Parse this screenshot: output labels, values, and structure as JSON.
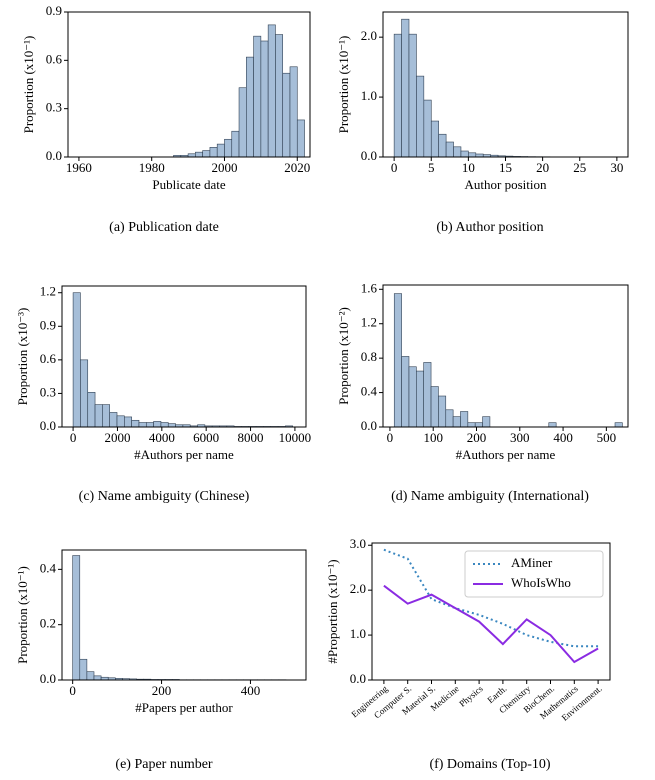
{
  "chart_data": [
    {
      "type": "histogram",
      "caption": "(a)  Publication date",
      "xlabel": "Publicate date",
      "ylabel": "Proportion (x10⁻¹)",
      "color": "#a6bed8",
      "edgecolor": "#2f3f52",
      "bins": [
        1960,
        1962,
        1964,
        1966,
        1968,
        1970,
        1972,
        1974,
        1976,
        1978,
        1980,
        1982,
        1984,
        1986,
        1988,
        1990,
        1992,
        1994,
        1996,
        1998,
        2000,
        2002,
        2004,
        2006,
        2008,
        2010,
        2012,
        2014,
        2016,
        2018,
        2020,
        2022
      ],
      "values": [
        0,
        0,
        0,
        0,
        0,
        0,
        0,
        0,
        0,
        0,
        0,
        0,
        0,
        0.01,
        0.01,
        0.02,
        0.03,
        0.04,
        0.06,
        0.08,
        0.11,
        0.16,
        0.43,
        0.62,
        0.75,
        0.72,
        0.82,
        0.76,
        0.52,
        0.56,
        0.23
      ],
      "xlim": [
        1957,
        2023.5
      ],
      "xticks": [
        1960,
        1980,
        2000,
        2020
      ],
      "ylim": [
        0,
        0.9
      ],
      "yticks": [
        {
          "value": 0,
          "label": "0.0"
        },
        0.3,
        0.6,
        0.9
      ]
    },
    {
      "type": "histogram",
      "caption": "(b)  Author position",
      "xlabel": "Author position",
      "ylabel": "Proportion (x10⁻¹)",
      "color": "#a6bed8",
      "edgecolor": "#2f3f52",
      "bins": [
        0,
        1,
        2,
        3,
        4,
        5,
        6,
        7,
        8,
        9,
        10,
        11,
        12,
        13,
        14,
        15,
        16,
        17,
        18,
        19,
        20,
        21,
        22,
        23,
        24,
        25,
        26,
        27,
        28,
        29,
        30
      ],
      "values": [
        2.05,
        2.3,
        2.05,
        1.35,
        0.95,
        0.6,
        0.38,
        0.25,
        0.17,
        0.1,
        0.07,
        0.05,
        0.04,
        0.03,
        0.02,
        0.015,
        0.01,
        0.008,
        0.006,
        0.005,
        0.004,
        0.003,
        0.003,
        0.002,
        0.002,
        0.002,
        0.001,
        0.001,
        0.001,
        0.001
      ],
      "xlim": [
        -1.5,
        31.5
      ],
      "xticks": [
        0,
        5,
        10,
        15,
        20,
        25,
        30
      ],
      "ylim": [
        0,
        2.42
      ],
      "yticks": [
        {
          "value": 0,
          "label": "0.0"
        },
        {
          "value": 1,
          "label": "1.0"
        },
        {
          "value": 2,
          "label": "2.0"
        }
      ]
    },
    {
      "type": "histogram",
      "caption": "(c)  Name ambiguity (Chinese)",
      "xlabel": "#Authors per name",
      "ylabel": "Proportion (x10⁻³)",
      "color": "#a6bed8",
      "edgecolor": "#2f3f52",
      "bins": [
        0,
        330,
        660,
        990,
        1320,
        1650,
        1980,
        2310,
        2640,
        2970,
        3300,
        3630,
        3960,
        4290,
        4620,
        4950,
        5280,
        5610,
        5940,
        6270,
        6600,
        6930,
        7260,
        7590,
        7920,
        8250,
        8580,
        8910,
        9240,
        9570,
        9900
      ],
      "values": [
        1.2,
        0.6,
        0.31,
        0.2,
        0.2,
        0.13,
        0.1,
        0.09,
        0.06,
        0.04,
        0.04,
        0.05,
        0.04,
        0.03,
        0.02,
        0.02,
        0.01,
        0.02,
        0.01,
        0.01,
        0.01,
        0.01,
        0.005,
        0.005,
        0.005,
        0.005,
        0.005,
        0.005,
        0.005,
        0.01
      ],
      "xlim": [
        -500,
        10500
      ],
      "xticks": [
        0,
        2000,
        4000,
        6000,
        8000,
        10000
      ],
      "ylim": [
        0,
        1.26
      ],
      "yticks": [
        {
          "value": 0,
          "label": "0.0"
        },
        0.3,
        0.6,
        0.9,
        1.2
      ]
    },
    {
      "type": "histogram",
      "caption": "(d)  Name ambiguity (International)",
      "xlabel": "#Authors per name",
      "ylabel": "Proportion (x10⁻²)",
      "color": "#a6bed8",
      "edgecolor": "#2f3f52",
      "bins": [
        10,
        27,
        44,
        61,
        78,
        95,
        112,
        129,
        146,
        163,
        180,
        197,
        214,
        231,
        248,
        265,
        282,
        299,
        316,
        333,
        350,
        367,
        384,
        401,
        418,
        435,
        452,
        469,
        486,
        503,
        520,
        537
      ],
      "values": [
        1.55,
        0.82,
        0.7,
        0.65,
        0.75,
        0.47,
        0.36,
        0.2,
        0.12,
        0.18,
        0.05,
        0.05,
        0.12,
        0,
        0,
        0,
        0,
        0,
        0,
        0,
        0,
        0.05,
        0,
        0,
        0,
        0,
        0,
        0,
        0,
        0,
        0.05
      ],
      "xlim": [
        -16,
        550
      ],
      "xticks": [
        0,
        100,
        200,
        300,
        400,
        500
      ],
      "ylim": [
        0,
        1.65
      ],
      "yticks": [
        {
          "value": 0,
          "label": "0.0"
        },
        0.4,
        0.8,
        1.2,
        1.6
      ]
    },
    {
      "type": "histogram",
      "caption": "(e)  Paper number",
      "xlabel": "#Papers per author",
      "ylabel": "Proportion (x10⁻¹)",
      "color": "#a6bed8",
      "edgecolor": "#2f3f52",
      "bins": [
        0,
        16,
        32,
        48,
        64,
        80,
        96,
        112,
        128,
        144,
        160,
        176,
        192,
        208,
        224,
        240,
        256,
        272,
        288,
        304,
        320,
        336,
        352,
        368,
        384,
        400,
        416,
        432,
        448,
        464,
        480
      ],
      "values": [
        0.45,
        0.075,
        0.03,
        0.015,
        0.01,
        0.008,
        0.006,
        0.005,
        0.004,
        0.003,
        0.003,
        0.002,
        0.002,
        0.002,
        0.002,
        0.001,
        0.001,
        0.001,
        0.001,
        0.001,
        0.001,
        0.001,
        0.001,
        0.001,
        0.001,
        0.001,
        0.001,
        0.001,
        0.001,
        0.001
      ],
      "xlim": [
        -24,
        525
      ],
      "xticks": [
        0,
        200,
        400
      ],
      "ylim": [
        0,
        0.47
      ],
      "yticks": [
        {
          "value": 0,
          "label": "0.0"
        },
        0.2,
        0.4
      ]
    },
    {
      "type": "line",
      "caption": "(f)  Domains (Top-10)",
      "ylabel": "#Proportion (x10⁻¹)",
      "legend": "upper right",
      "categories": [
        "Engineering",
        "Computer S.",
        "Material S.",
        "Medicine",
        "Physics",
        "Earth.",
        "Chemistry",
        "BioChem.",
        "Mathematics",
        "Environment."
      ],
      "series": [
        {
          "name": "AMiner",
          "color": "#3a87c0",
          "linestyle": "dotted",
          "values": [
            2.9,
            2.7,
            1.8,
            1.6,
            1.45,
            1.25,
            1.0,
            0.85,
            0.75,
            0.75
          ]
        },
        {
          "name": "WhoIsWho",
          "color": "#8a2be2",
          "linestyle": "solid",
          "values": [
            2.1,
            1.7,
            1.9,
            1.6,
            1.3,
            0.8,
            1.35,
            1.0,
            0.4,
            0.7
          ]
        }
      ],
      "ylim": [
        0,
        3.05
      ],
      "yticks": [
        {
          "value": 0,
          "label": "0.0"
        },
        {
          "value": 1,
          "label": "1.0"
        },
        {
          "value": 2,
          "label": "2.0"
        },
        {
          "value": 3,
          "label": "3.0"
        }
      ]
    }
  ]
}
